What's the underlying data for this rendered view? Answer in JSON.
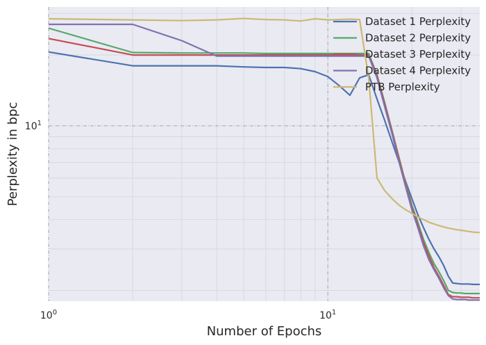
{
  "chart_data": {
    "type": "line",
    "title": "",
    "xlabel": "Number of Epochs",
    "ylabel": "Perplexity in bpc",
    "xscale": "log",
    "yscale": "log",
    "xlim": [
      1,
      35
    ],
    "ylim": [
      1.8,
      32
    ],
    "grid": true,
    "legend_position": "top-right",
    "x_ticks": [
      {
        "value": 1,
        "base": "10",
        "exp": "0"
      },
      {
        "value": 10,
        "base": "10",
        "exp": "1"
      }
    ],
    "y_ticks": [
      {
        "value": 10,
        "base": "10",
        "exp": "1"
      }
    ],
    "series": [
      {
        "name": "Dataset 1 Perplexity",
        "color": "#4c72b0",
        "x": [
          1,
          2,
          3,
          4,
          5,
          6,
          7,
          8,
          9,
          10,
          11,
          12,
          13,
          14,
          15,
          16,
          17,
          18,
          19,
          20,
          21,
          22,
          23,
          24,
          25,
          26,
          27,
          28,
          29,
          30,
          31,
          32,
          33,
          34,
          35
        ],
        "y": [
          20.6,
          18.0,
          18.0,
          18.0,
          17.8,
          17.7,
          17.7,
          17.5,
          17.0,
          16.2,
          14.8,
          13.5,
          16.0,
          16.5,
          13.0,
          10.5,
          8.5,
          7.0,
          5.8,
          4.9,
          4.2,
          3.7,
          3.3,
          3.0,
          2.78,
          2.55,
          2.3,
          2.15,
          2.14,
          2.13,
          2.13,
          2.13,
          2.12,
          2.12,
          2.12
        ]
      },
      {
        "name": "Dataset 2 Perplexity",
        "color": "#55a868",
        "x": [
          1,
          2,
          3,
          4,
          5,
          6,
          7,
          8,
          9,
          10,
          11,
          12,
          13,
          14,
          15,
          16,
          17,
          18,
          19,
          20,
          21,
          22,
          23,
          24,
          25,
          26,
          27,
          28,
          29,
          30,
          31,
          32,
          33,
          34,
          35
        ],
        "y": [
          26.0,
          20.5,
          20.4,
          20.4,
          20.4,
          20.3,
          20.3,
          20.3,
          20.3,
          20.3,
          20.3,
          20.3,
          20.3,
          20.3,
          16.5,
          12.5,
          9.5,
          7.3,
          5.7,
          4.6,
          3.9,
          3.3,
          2.9,
          2.6,
          2.4,
          2.2,
          2.0,
          1.96,
          1.95,
          1.95,
          1.94,
          1.94,
          1.94,
          1.94,
          1.94
        ]
      },
      {
        "name": "Dataset 3 Perplexity",
        "color": "#c44e52",
        "x": [
          1,
          2,
          3,
          4,
          5,
          6,
          7,
          8,
          9,
          10,
          11,
          12,
          13,
          14,
          15,
          16,
          17,
          18,
          19,
          20,
          21,
          22,
          23,
          24,
          25,
          26,
          27,
          28,
          29,
          30,
          31,
          32,
          33,
          34,
          35
        ],
        "y": [
          23.5,
          20.0,
          20.0,
          20.0,
          20.0,
          20.0,
          20.0,
          20.0,
          20.0,
          20.0,
          20.0,
          20.0,
          20.0,
          20.0,
          16.3,
          12.3,
          9.4,
          7.2,
          5.6,
          4.5,
          3.8,
          3.2,
          2.8,
          2.5,
          2.3,
          2.1,
          1.92,
          1.88,
          1.88,
          1.87,
          1.87,
          1.87,
          1.86,
          1.86,
          1.86
        ]
      },
      {
        "name": "Dataset 4 Perplexity",
        "color": "#8172b2",
        "x": [
          1,
          2,
          3,
          4,
          5,
          6,
          7,
          8,
          9,
          10,
          11,
          12,
          13,
          14,
          15,
          16,
          17,
          18,
          19,
          20,
          21,
          22,
          23,
          24,
          25,
          26,
          27,
          28,
          29,
          30,
          31,
          32,
          33,
          34,
          35
        ],
        "y": [
          27.0,
          27.0,
          23.0,
          19.8,
          19.8,
          19.8,
          19.8,
          19.8,
          19.8,
          19.8,
          19.8,
          19.8,
          19.8,
          19.8,
          16.0,
          12.0,
          9.2,
          7.0,
          5.5,
          4.4,
          3.7,
          3.1,
          2.7,
          2.45,
          2.25,
          2.05,
          1.9,
          1.84,
          1.83,
          1.83,
          1.83,
          1.82,
          1.82,
          1.82,
          1.82
        ]
      },
      {
        "name": "PTB Perplexity",
        "color": "#ccb974",
        "x": [
          1,
          2,
          3,
          4,
          5,
          6,
          7,
          8,
          9,
          10,
          11,
          12,
          13,
          14,
          15,
          16,
          17,
          18,
          19,
          20,
          21,
          22,
          23,
          24,
          25,
          26,
          27,
          28,
          29,
          30,
          31,
          32,
          33,
          34,
          35
        ],
        "y": [
          28.5,
          28.2,
          28.0,
          28.2,
          28.6,
          28.3,
          28.2,
          27.9,
          28.5,
          28.2,
          28.3,
          28.4,
          28.3,
          16.0,
          6.0,
          5.3,
          4.9,
          4.6,
          4.4,
          4.25,
          4.1,
          4.0,
          3.9,
          3.83,
          3.77,
          3.72,
          3.68,
          3.65,
          3.62,
          3.6,
          3.58,
          3.56,
          3.54,
          3.53,
          3.52
        ]
      }
    ]
  }
}
